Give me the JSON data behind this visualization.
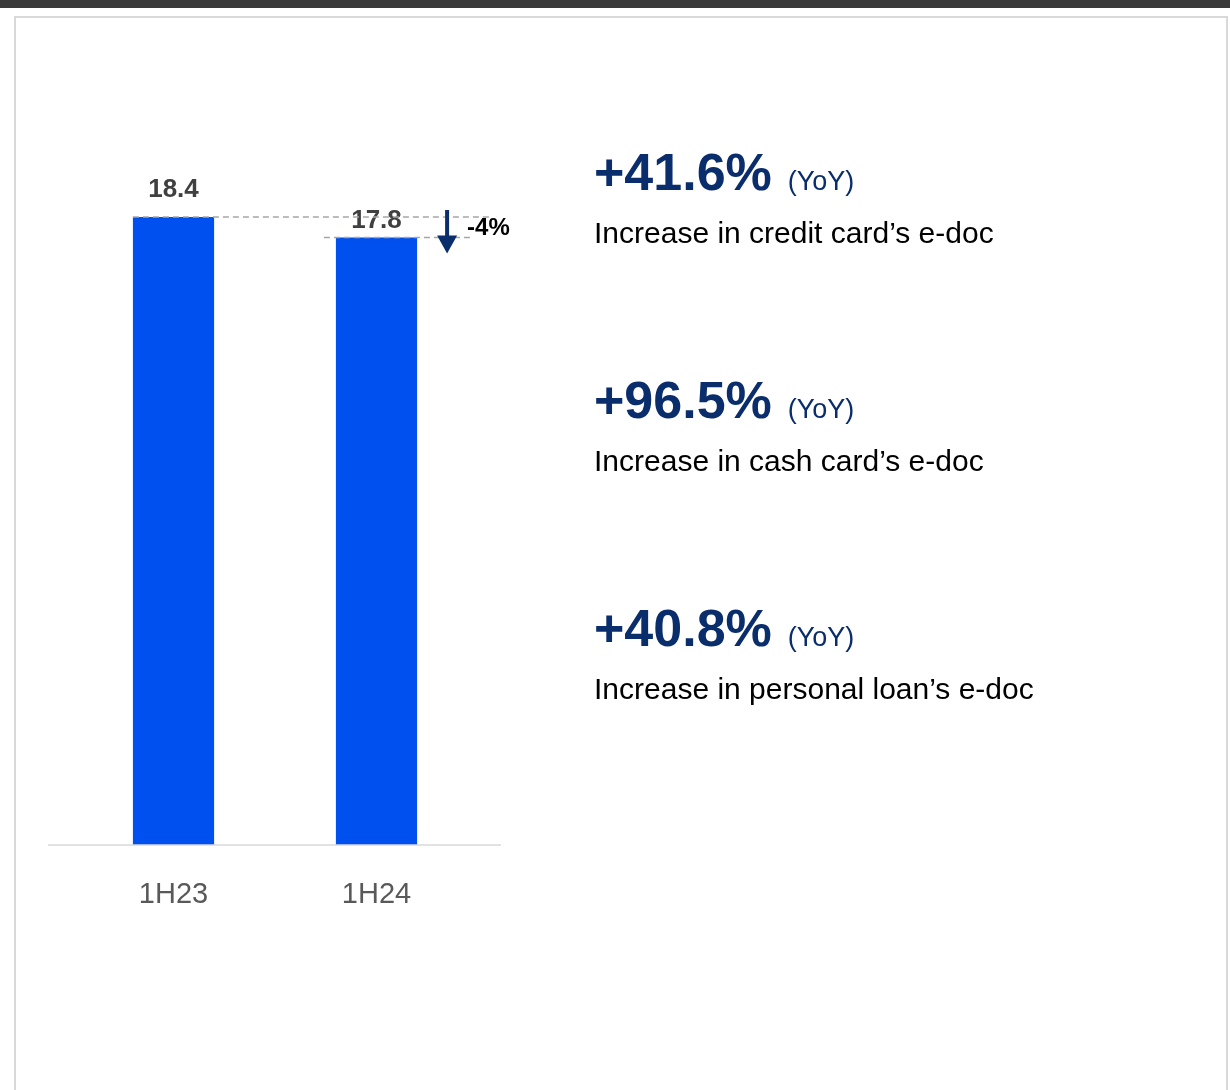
{
  "chart_data": {
    "type": "bar",
    "categories": [
      "1H23",
      "1H24"
    ],
    "values": [
      18.4,
      17.8
    ],
    "color": "#0050ef",
    "data_labels": true,
    "ref_lines": [
      {
        "axis": "y",
        "value": 18.4,
        "color": "#a6a6a6",
        "line_style": "dashed"
      },
      {
        "axis": "y",
        "value": 17.8,
        "color": "#a6a6a6",
        "line_style": "dashed"
      }
    ],
    "annotations": [
      "-4%",
      "+41.6%",
      "(YoY)",
      "Increase in credit card’s e-doc",
      "+96.5%",
      "(YoY)",
      "Increase in cash card’s e-doc",
      "+40.8%",
      "(YoY)",
      "Increase in personal loan’s e-doc"
    ]
  }
}
